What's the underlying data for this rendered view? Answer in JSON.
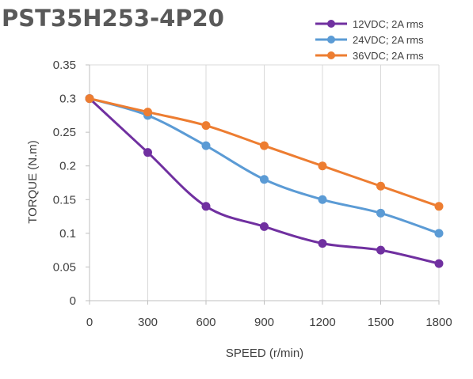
{
  "chart_data": {
    "type": "line",
    "title": "PST35H253-4P20",
    "xlabel": "SPEED (r/min)",
    "ylabel": "TORQUE (N.m)",
    "x": [
      0,
      300,
      600,
      900,
      1200,
      1500,
      1800
    ],
    "x_tick_labels": [
      "0",
      "300",
      "600",
      "900",
      "1200",
      "1500",
      "1800"
    ],
    "y_tick_labels": [
      "0",
      "0.05",
      "0.1",
      "0.15",
      "0.2",
      "0.25",
      "0.3",
      "0.35"
    ],
    "ylim": [
      0,
      0.35
    ],
    "grid": "vertical",
    "legend_position": "top-right",
    "series": [
      {
        "name": "12VDC; 2A rms",
        "color": "#7030A0",
        "values": [
          0.3,
          0.22,
          0.14,
          0.11,
          0.085,
          0.075,
          0.055
        ]
      },
      {
        "name": "24VDC; 2A rms",
        "color": "#5B9BD5",
        "values": [
          0.3,
          0.275,
          0.23,
          0.18,
          0.15,
          0.13,
          0.1
        ]
      },
      {
        "name": "36VDC; 2A rms",
        "color": "#ED7D31",
        "values": [
          0.3,
          0.28,
          0.26,
          0.23,
          0.2,
          0.17,
          0.14
        ]
      }
    ]
  }
}
